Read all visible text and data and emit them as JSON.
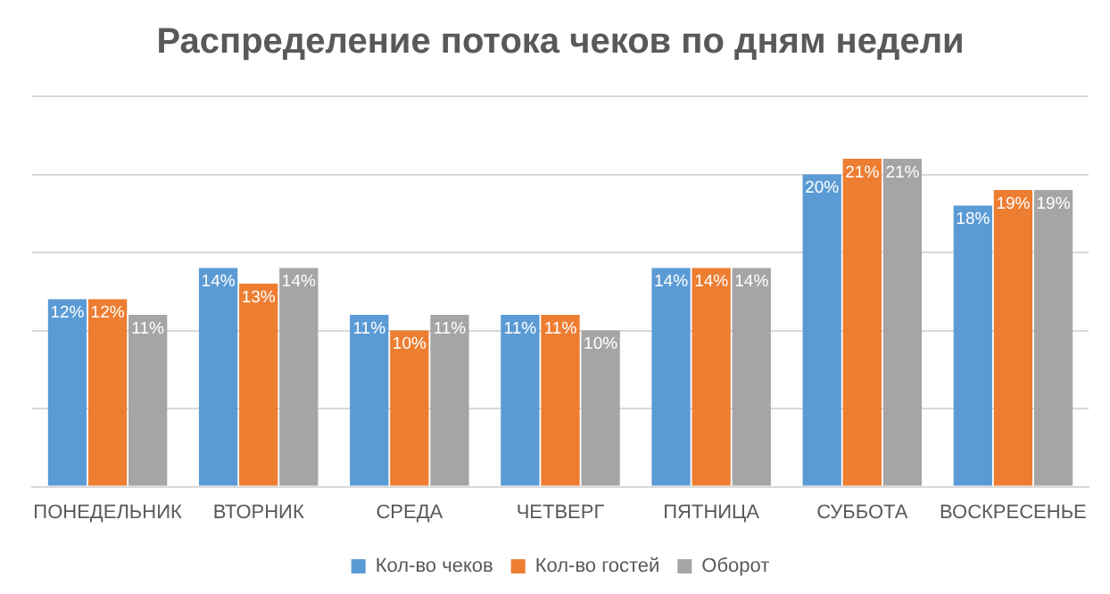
{
  "chart_data": {
    "type": "bar",
    "title": "Распределение потока чеков по дням недели",
    "categories": [
      "ПОНЕДЕЛЬНИК",
      "ВТОРНИК",
      "СРЕДА",
      "ЧЕТВЕРГ",
      "ПЯТНИЦА",
      "СУББОТА",
      "ВОСКРЕСЕНЬЕ"
    ],
    "series": [
      {
        "name": "Кол-во чеков",
        "color": "#5b9bd5",
        "values": [
          12,
          14,
          11,
          11,
          14,
          20,
          18
        ],
        "value_labels": [
          "12%",
          "14%",
          "11%",
          "11%",
          "14%",
          "20%",
          "18%"
        ]
      },
      {
        "name": "Кол-во гостей",
        "color": "#ed7d31",
        "values": [
          12,
          13,
          10,
          11,
          14,
          21,
          19
        ],
        "value_labels": [
          "12%",
          "13%",
          "10%",
          "11%",
          "14%",
          "21%",
          "19%"
        ]
      },
      {
        "name": "Оборот",
        "color": "#a5a5a5",
        "values": [
          11,
          14,
          11,
          10,
          14,
          21,
          19
        ],
        "value_labels": [
          "11%",
          "14%",
          "11%",
          "10%",
          "14%",
          "21%",
          "19%"
        ]
      }
    ],
    "ylim": [
      0,
      25
    ],
    "yticks": [
      {
        "value": 0,
        "label": null
      },
      {
        "value": 5,
        "label": null
      },
      {
        "value": 10,
        "label": null
      },
      {
        "value": 15,
        "label": null
      },
      {
        "value": 20,
        "label": null
      },
      {
        "value": 25,
        "label": null
      }
    ],
    "tick_labels": "x",
    "grid": "y",
    "legend": "bottom"
  }
}
